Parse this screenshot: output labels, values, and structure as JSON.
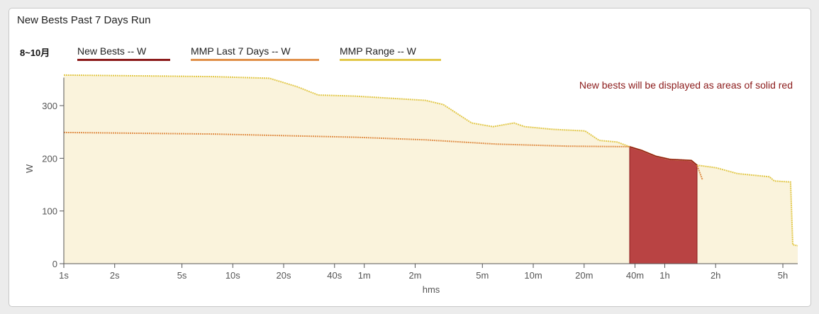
{
  "title": "New Bests Past 7 Days Run",
  "legend": {
    "range_label": "8~10月",
    "items": [
      {
        "label": "New Bests  -- W",
        "color": "#8b1a1a"
      },
      {
        "label": "MMP Last 7 Days  -- W",
        "color": "#e0904a"
      },
      {
        "label": "MMP Range  -- W",
        "color": "#e2c84a"
      }
    ]
  },
  "chart_data": {
    "type": "area",
    "title": "New Bests Past 7 Days Run",
    "xlabel": "hms",
    "ylabel": "W",
    "xscale": "log",
    "xlim": [
      1,
      22050
    ],
    "ylim": [
      0,
      380
    ],
    "xticks": [
      {
        "v": 1,
        "l": "1s"
      },
      {
        "v": 2,
        "l": "2s"
      },
      {
        "v": 5,
        "l": "5s"
      },
      {
        "v": 10,
        "l": "10s"
      },
      {
        "v": 20,
        "l": "20s"
      },
      {
        "v": 40,
        "l": "40s"
      },
      {
        "v": 60,
        "l": "1m"
      },
      {
        "v": 120,
        "l": "2m"
      },
      {
        "v": 300,
        "l": "5m"
      },
      {
        "v": 600,
        "l": "10m"
      },
      {
        "v": 1200,
        "l": "20m"
      },
      {
        "v": 2400,
        "l": "40m"
      },
      {
        "v": 3600,
        "l": "1h"
      },
      {
        "v": 7200,
        "l": "2h"
      },
      {
        "v": 18000,
        "l": "5h"
      }
    ],
    "yticks": [
      {
        "v": 0,
        "l": "0"
      },
      {
        "v": 100,
        "l": "100"
      },
      {
        "v": 200,
        "l": "200"
      },
      {
        "v": 300,
        "l": "300"
      }
    ],
    "annotation": "New bests will be displayed as areas of solid red",
    "series": [
      {
        "name": "MMP Range",
        "color": "#e2c84a",
        "fill": "#faf3dc",
        "points": [
          [
            1,
            358
          ],
          [
            7.6,
            355
          ],
          [
            16.5,
            352
          ],
          [
            24,
            336
          ],
          [
            32,
            320
          ],
          [
            53,
            318
          ],
          [
            138,
            310
          ],
          [
            176,
            302
          ],
          [
            259,
            267
          ],
          [
            346,
            260
          ],
          [
            462,
            267
          ],
          [
            534,
            260
          ],
          [
            787,
            255
          ],
          [
            1214,
            252
          ],
          [
            1473,
            234
          ],
          [
            1876,
            231
          ],
          [
            2233,
            222
          ],
          [
            2632,
            215
          ],
          [
            3192,
            204
          ],
          [
            3873,
            198
          ],
          [
            5176,
            196
          ],
          [
            5588,
            187
          ],
          [
            7260,
            182
          ],
          [
            9700,
            171
          ],
          [
            14970,
            165
          ],
          [
            16030,
            157
          ],
          [
            20000,
            155
          ],
          [
            20600,
            36
          ],
          [
            22050,
            34
          ]
        ]
      },
      {
        "name": "MMP Last 7 Days",
        "color": "#e0904a",
        "points": [
          [
            1,
            249
          ],
          [
            7.6,
            246
          ],
          [
            53,
            240
          ],
          [
            138,
            235
          ],
          [
            363,
            227
          ],
          [
            953,
            223
          ],
          [
            2233,
            222
          ],
          [
            2632,
            215
          ],
          [
            3192,
            204
          ],
          [
            3873,
            198
          ],
          [
            5176,
            196
          ],
          [
            5588,
            187
          ],
          [
            5984,
            161
          ],
          [
            6100,
            161
          ]
        ]
      },
      {
        "name": "New Bests",
        "color": "#8b1a1a",
        "fill": "#b94343",
        "points": [
          [
            2233,
            222
          ],
          [
            2632,
            215
          ],
          [
            3192,
            204
          ],
          [
            3873,
            198
          ],
          [
            5176,
            196
          ],
          [
            5588,
            187
          ]
        ]
      }
    ]
  }
}
